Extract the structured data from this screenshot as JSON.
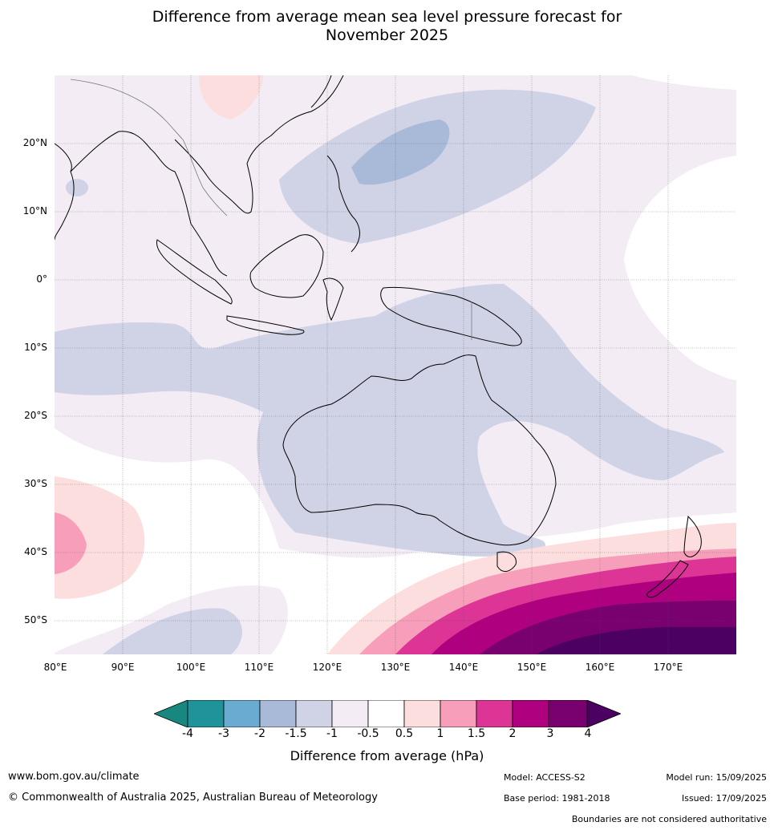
{
  "title_line1": "Difference from average mean sea level pressure forecast for",
  "title_line2": "November 2025",
  "map": {
    "lat_labels": [
      "20°N",
      "10°N",
      "0°",
      "10°S",
      "20°S",
      "30°S",
      "40°S",
      "50°S"
    ],
    "lon_labels": [
      "80°E",
      "90°E",
      "100°E",
      "110°E",
      "120°E",
      "130°E",
      "140°E",
      "150°E",
      "160°E",
      "170°E"
    ],
    "extent": {
      "lon_min": 80,
      "lon_max": 180,
      "lat_min": -55,
      "lat_max": 30
    },
    "grid_lines": true
  },
  "colorbar": {
    "ticks": [
      "-4",
      "-3",
      "-2",
      "-1.5",
      "-1",
      "-0.5",
      "0.5",
      "1",
      "1.5",
      "2",
      "3",
      "4"
    ],
    "colors": [
      "#17877f",
      "#1e9399",
      "#6aabd1",
      "#a8bad8",
      "#d0d2e6",
      "#f3ecf5",
      "#ffffff",
      "#fddede",
      "#f79fba",
      "#dc3596",
      "#ae007f",
      "#78006f",
      "#4b0062"
    ],
    "label": "Difference from average (hPa)"
  },
  "footer": {
    "website": "www.bom.gov.au/climate",
    "copyright": "© Commonwealth of Australia 2025, Australian Bureau of Meteorology",
    "model": "Model: ACCESS-S2",
    "base_period": "Base period: 1981-2018",
    "model_run": "Model run: 15/09/2025",
    "issued": "Issued: 17/09/2025",
    "disclaimer": "Boundaries are not considered authoritative"
  }
}
